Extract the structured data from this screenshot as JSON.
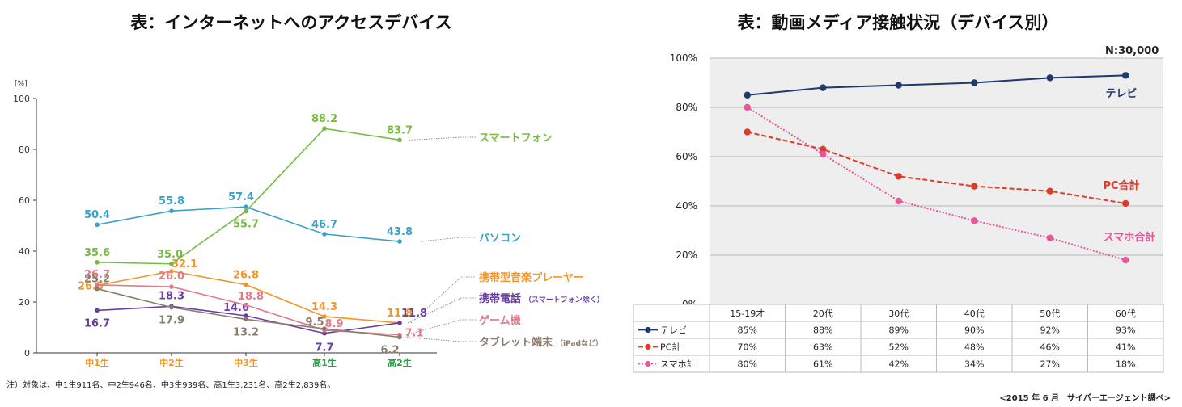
{
  "left_chart": {
    "title": "表：インターネットへのアクセスデバイス",
    "unit_label": "[%]",
    "note": "注）対象は、中1生911名、中2生946名、中3生939名、高1生3,231名、高2生2,839名。",
    "chart_data": {
      "type": "line",
      "categories": [
        "中1生",
        "中2生",
        "中3生",
        "高1生",
        "高2生"
      ],
      "ylim": [
        0,
        100
      ],
      "yticks": [
        0,
        20,
        40,
        60,
        80,
        100
      ],
      "series": [
        {
          "name": "スマートフォン",
          "values": [
            35.6,
            35.0,
            55.7,
            88.2,
            83.7
          ],
          "color": "#77bb44",
          "labels": [
            "35.6",
            "35.0",
            "55.7",
            "88.2",
            "83.7"
          ]
        },
        {
          "name": "パソコン",
          "values": [
            50.4,
            55.8,
            57.4,
            46.7,
            43.8
          ],
          "color": "#3aa0c8",
          "labels": [
            "50.4",
            "55.8",
            "57.4",
            "46.7",
            "43.8"
          ]
        },
        {
          "name": "携帯型音楽プレーヤー",
          "values": [
            26.5,
            32.1,
            26.8,
            14.3,
            11.8
          ],
          "color": "#f0962c",
          "labels": [
            "26.5",
            "32.1",
            "26.8",
            "14.3",
            "11.8"
          ]
        },
        {
          "name": "携帯電話",
          "name_suffix": "（スマートフォン除く）",
          "values": [
            16.7,
            18.3,
            14.6,
            7.7,
            11.8
          ],
          "color": "#6a3fa0",
          "labels": [
            "16.7",
            "18.3",
            "14.6",
            "7.7",
            "11.8"
          ]
        },
        {
          "name": "ゲーム機",
          "values": [
            26.7,
            26.0,
            18.8,
            8.9,
            7.1
          ],
          "color": "#e07a8c",
          "labels": [
            "26.7",
            "26.0",
            "18.8",
            "8.9",
            "7.1"
          ]
        },
        {
          "name": "タブレット端末",
          "name_suffix": "（iPadなど）",
          "values": [
            25.2,
            17.9,
            13.2,
            9.5,
            6.2
          ],
          "color": "#8a7d6e",
          "labels": [
            "25.2",
            "17.9",
            "13.2",
            "9.5",
            "6.2"
          ]
        }
      ],
      "category_colors": [
        "#f0962c",
        "#f0962c",
        "#f0962c",
        "#2e9c4a",
        "#2e9c4a"
      ]
    }
  },
  "right_chart": {
    "title": "表：動画メディア接触状況（デバイス別）",
    "n_label": "N:30,000",
    "credit": "<2015 年 6 月　サイバーエージェント調べ>",
    "chart_data": {
      "type": "line",
      "categories": [
        "15-19才",
        "20代",
        "30代",
        "40代",
        "50代",
        "60代"
      ],
      "ylim": [
        0,
        100
      ],
      "yticks": [
        0,
        20,
        40,
        60,
        80,
        100
      ],
      "ytick_labels": [
        "0%",
        "20%",
        "40%",
        "60%",
        "80%",
        "100%"
      ],
      "grid": true,
      "series": [
        {
          "name": "テレビ",
          "values": [
            85,
            88,
            89,
            90,
            92,
            93
          ],
          "color": "#1f3a6e",
          "style": "solid",
          "table_values": [
            "85%",
            "88%",
            "89%",
            "90%",
            "92%",
            "93%"
          ]
        },
        {
          "name": "PC計",
          "values": [
            70,
            63,
            52,
            48,
            46,
            41
          ],
          "color": "#e03a2a",
          "style": "dashed",
          "table_values": [
            "70%",
            "63%",
            "52%",
            "48%",
            "46%",
            "41%"
          ]
        },
        {
          "name": "スマホ計",
          "values": [
            80,
            61,
            42,
            34,
            27,
            18
          ],
          "color": "#e8569c",
          "style": "dotted",
          "table_values": [
            "80%",
            "61%",
            "42%",
            "34%",
            "27%",
            "18%"
          ]
        }
      ],
      "annotations": [
        {
          "text": "テレビ",
          "series": 0,
          "color": "#1f3a6e"
        },
        {
          "text": "PC合計",
          "series": 1,
          "color": "#e03a2a"
        },
        {
          "text": "スマホ合計",
          "series": 2,
          "color": "#e8569c"
        }
      ]
    }
  }
}
